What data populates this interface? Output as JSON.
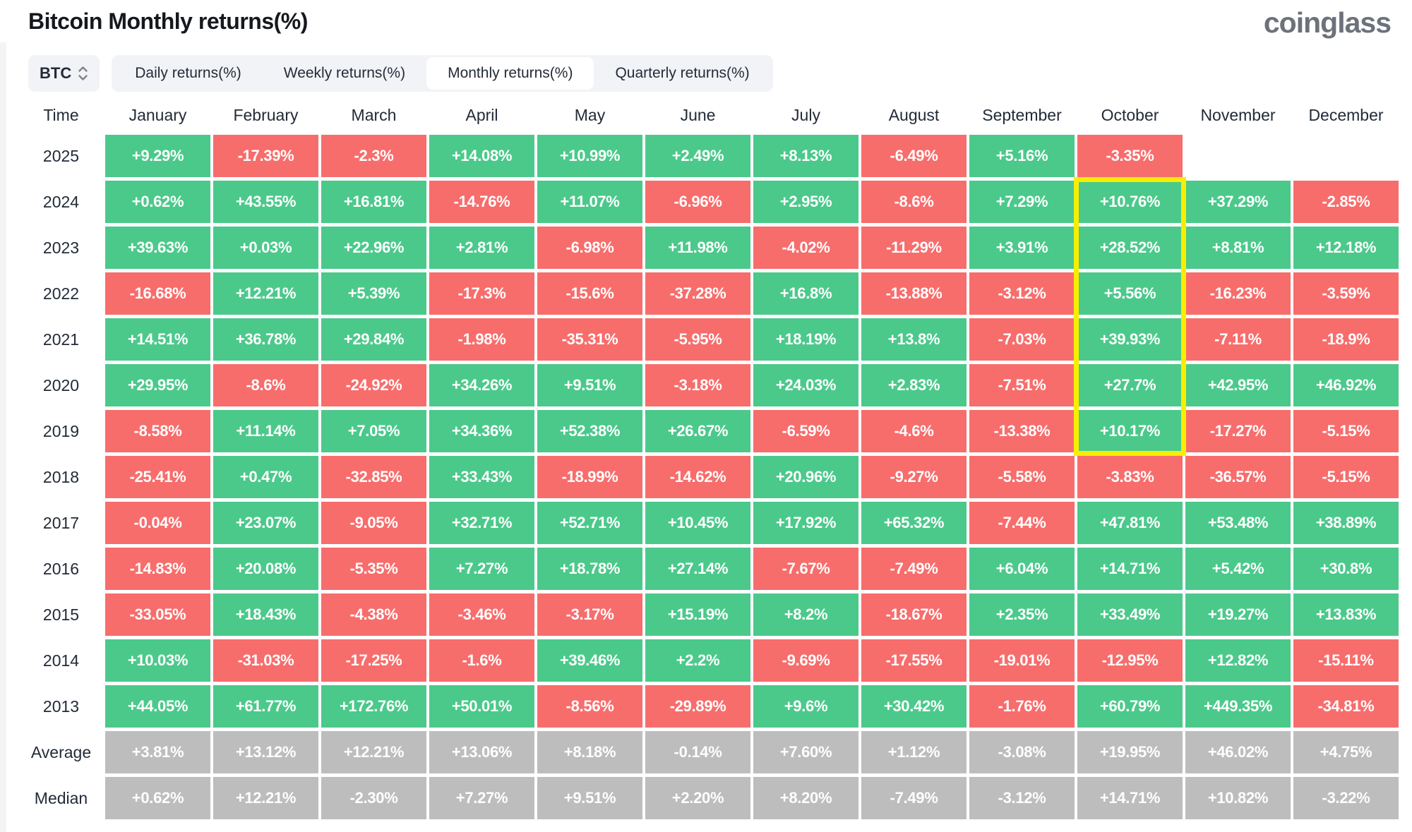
{
  "header": {
    "title": "Bitcoin Monthly returns(%)",
    "logo": "coinglass"
  },
  "controls": {
    "symbol": "BTC",
    "tabs": [
      {
        "label": "Daily returns(%)",
        "selected": false
      },
      {
        "label": "Weekly returns(%)",
        "selected": false
      },
      {
        "label": "Monthly returns(%)",
        "selected": true
      },
      {
        "label": "Quarterly returns(%)",
        "selected": false
      }
    ]
  },
  "chart_data": {
    "type": "heatmap",
    "title": "Bitcoin Monthly returns(%)",
    "time_header": "Time",
    "columns": [
      "January",
      "February",
      "March",
      "April",
      "May",
      "June",
      "July",
      "August",
      "September",
      "October",
      "November",
      "December"
    ],
    "colors": {
      "positive": "#4bc98b",
      "negative": "#f76d6c",
      "summary": "#bdbdbd",
      "highlight": "#f8ee00"
    },
    "rows": [
      {
        "label": "2025",
        "values": [
          "+9.29%",
          "-17.39%",
          "-2.3%",
          "+14.08%",
          "+10.99%",
          "+2.49%",
          "+8.13%",
          "-6.49%",
          "+5.16%",
          "-3.35%",
          "",
          ""
        ]
      },
      {
        "label": "2024",
        "values": [
          "+0.62%",
          "+43.55%",
          "+16.81%",
          "-14.76%",
          "+11.07%",
          "-6.96%",
          "+2.95%",
          "-8.6%",
          "+7.29%",
          "+10.76%",
          "+37.29%",
          "-2.85%"
        ]
      },
      {
        "label": "2023",
        "values": [
          "+39.63%",
          "+0.03%",
          "+22.96%",
          "+2.81%",
          "-6.98%",
          "+11.98%",
          "-4.02%",
          "-11.29%",
          "+3.91%",
          "+28.52%",
          "+8.81%",
          "+12.18%"
        ]
      },
      {
        "label": "2022",
        "values": [
          "-16.68%",
          "+12.21%",
          "+5.39%",
          "-17.3%",
          "-15.6%",
          "-37.28%",
          "+16.8%",
          "-13.88%",
          "-3.12%",
          "+5.56%",
          "-16.23%",
          "-3.59%"
        ]
      },
      {
        "label": "2021",
        "values": [
          "+14.51%",
          "+36.78%",
          "+29.84%",
          "-1.98%",
          "-35.31%",
          "-5.95%",
          "+18.19%",
          "+13.8%",
          "-7.03%",
          "+39.93%",
          "-7.11%",
          "-18.9%"
        ]
      },
      {
        "label": "2020",
        "values": [
          "+29.95%",
          "-8.6%",
          "-24.92%",
          "+34.26%",
          "+9.51%",
          "-3.18%",
          "+24.03%",
          "+2.83%",
          "-7.51%",
          "+27.7%",
          "+42.95%",
          "+46.92%"
        ]
      },
      {
        "label": "2019",
        "values": [
          "-8.58%",
          "+11.14%",
          "+7.05%",
          "+34.36%",
          "+52.38%",
          "+26.67%",
          "-6.59%",
          "-4.6%",
          "-13.38%",
          "+10.17%",
          "-17.27%",
          "-5.15%"
        ]
      },
      {
        "label": "2018",
        "values": [
          "-25.41%",
          "+0.47%",
          "-32.85%",
          "+33.43%",
          "-18.99%",
          "-14.62%",
          "+20.96%",
          "-9.27%",
          "-5.58%",
          "-3.83%",
          "-36.57%",
          "-5.15%"
        ]
      },
      {
        "label": "2017",
        "values": [
          "-0.04%",
          "+23.07%",
          "-9.05%",
          "+32.71%",
          "+52.71%",
          "+10.45%",
          "+17.92%",
          "+65.32%",
          "-7.44%",
          "+47.81%",
          "+53.48%",
          "+38.89%"
        ]
      },
      {
        "label": "2016",
        "values": [
          "-14.83%",
          "+20.08%",
          "-5.35%",
          "+7.27%",
          "+18.78%",
          "+27.14%",
          "-7.67%",
          "-7.49%",
          "+6.04%",
          "+14.71%",
          "+5.42%",
          "+30.8%"
        ]
      },
      {
        "label": "2015",
        "values": [
          "-33.05%",
          "+18.43%",
          "-4.38%",
          "-3.46%",
          "-3.17%",
          "+15.19%",
          "+8.2%",
          "-18.67%",
          "+2.35%",
          "+33.49%",
          "+19.27%",
          "+13.83%"
        ]
      },
      {
        "label": "2014",
        "values": [
          "+10.03%",
          "-31.03%",
          "-17.25%",
          "-1.6%",
          "+39.46%",
          "+2.2%",
          "-9.69%",
          "-17.55%",
          "-19.01%",
          "-12.95%",
          "+12.82%",
          "-15.11%"
        ]
      },
      {
        "label": "2013",
        "values": [
          "+44.05%",
          "+61.77%",
          "+172.76%",
          "+50.01%",
          "-8.56%",
          "-29.89%",
          "+9.6%",
          "+30.42%",
          "-1.76%",
          "+60.79%",
          "+449.35%",
          "-34.81%"
        ]
      },
      {
        "label": "Average",
        "summary": true,
        "values": [
          "+3.81%",
          "+13.12%",
          "+12.21%",
          "+13.06%",
          "+8.18%",
          "-0.14%",
          "+7.60%",
          "+1.12%",
          "-3.08%",
          "+19.95%",
          "+46.02%",
          "+4.75%"
        ]
      },
      {
        "label": "Median",
        "summary": true,
        "values": [
          "+0.62%",
          "+12.21%",
          "-2.30%",
          "+7.27%",
          "+9.51%",
          "+2.20%",
          "+8.20%",
          "-7.49%",
          "-3.12%",
          "+14.71%",
          "+10.82%",
          "-3.22%"
        ]
      }
    ],
    "highlight": {
      "column": "October",
      "from_row": "2024",
      "to_row": "2019"
    }
  }
}
